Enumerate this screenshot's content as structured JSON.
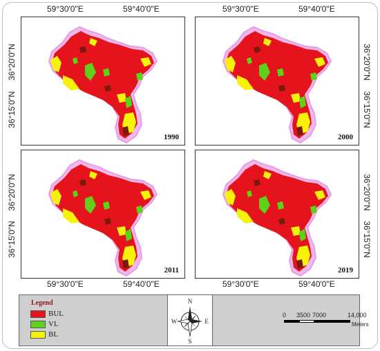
{
  "top_axis": {
    "lon_labels": [
      "59°30'0\"E",
      "59°40'0\"E"
    ]
  },
  "bottom_axis": {
    "lon_labels": [
      "59°30'0\"E",
      "59°40'0\"E"
    ]
  },
  "left_axis": {
    "lat_labels": [
      "36°20'0\"N",
      "36°15'0\"N"
    ]
  },
  "right_axis": {
    "lat_labels": [
      "36°20'0\"N",
      "36°15'0\"N"
    ]
  },
  "panels": [
    {
      "year": "1990"
    },
    {
      "year": "2000"
    },
    {
      "year": "2011"
    },
    {
      "year": "2019"
    }
  ],
  "legend": {
    "title": "Legend",
    "items": [
      {
        "label": "BUL",
        "color": "#e5131b"
      },
      {
        "label": "VL",
        "color": "#5fd11b"
      },
      {
        "label": "BL",
        "color": "#f7f20a"
      }
    ]
  },
  "north_arrow": {
    "n": "N",
    "s": "S",
    "e": "E",
    "w": "W",
    "icon": "compass-rose-icon"
  },
  "scale_bar": {
    "ticks": [
      "0",
      "3500",
      "7000",
      "14,000"
    ],
    "unit": "Meters"
  },
  "colors": {
    "urban_outline": "#f2b8ee",
    "built_up": "#e5131b",
    "vegetation": "#5fd11b",
    "bare": "#f7f20a",
    "dark_patch": "#7a1a0a"
  }
}
